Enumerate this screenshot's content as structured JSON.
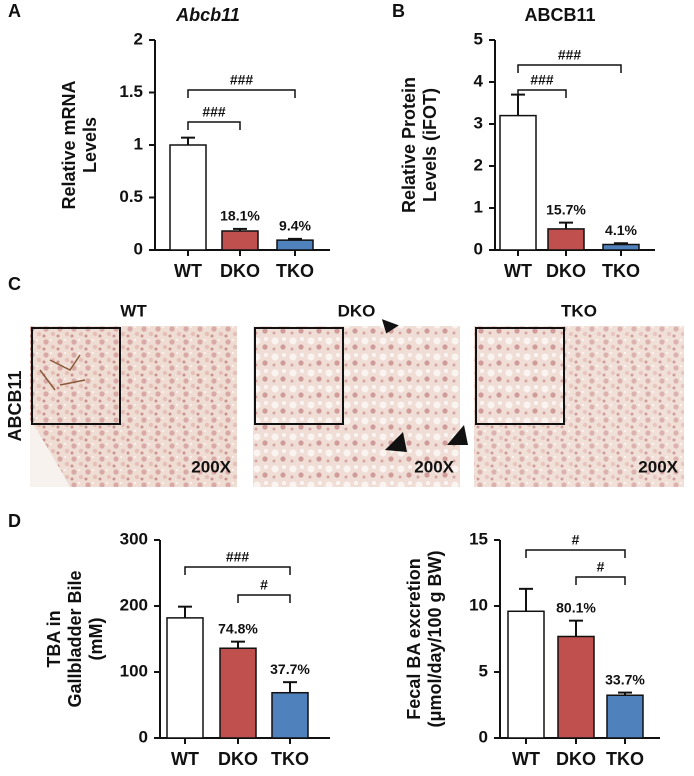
{
  "chart_data": [
    {
      "type": "bar",
      "panel": "A",
      "title": "Abcb11",
      "ylabel": [
        "Relative mRNA",
        "Levels"
      ],
      "categories": [
        "WT",
        "DKO",
        "TKO"
      ],
      "values": [
        1.0,
        0.181,
        0.094
      ],
      "errors": [
        0.07,
        0.02,
        0.012
      ],
      "value_labels": [
        null,
        "18.1%",
        "9.4%"
      ],
      "colors": [
        "#ffffff",
        "#c0504d",
        "#4f81bd"
      ],
      "ylim": [
        0,
        2
      ],
      "yticks": [
        0,
        0.5,
        1,
        1.5,
        2
      ],
      "brackets": [
        {
          "label": "###",
          "between": [
            "WT",
            "DKO"
          ]
        },
        {
          "label": "###",
          "between": [
            "WT",
            "TKO"
          ]
        }
      ]
    },
    {
      "type": "bar",
      "panel": "B",
      "title": "ABCB11",
      "ylabel": [
        "Relative Protein",
        "Levels (iFOT)"
      ],
      "categories": [
        "WT",
        "DKO",
        "TKO"
      ],
      "values": [
        3.2,
        0.502,
        0.131
      ],
      "errors": [
        0.5,
        0.15,
        0.03
      ],
      "value_labels": [
        null,
        "15.7%",
        "4.1%"
      ],
      "colors": [
        "#ffffff",
        "#c0504d",
        "#4f81bd"
      ],
      "ylim": [
        0,
        5
      ],
      "yticks": [
        0,
        1,
        2,
        3,
        4,
        5
      ],
      "brackets": [
        {
          "label": "###",
          "between": [
            "WT",
            "TKO"
          ]
        },
        {
          "label": "###",
          "between": [
            "WT",
            "DKO"
          ]
        }
      ]
    },
    {
      "type": "bar",
      "panel": "D",
      "ylabel": [
        "TBA in",
        "Gallbladder Bile",
        "(mM)"
      ],
      "categories": [
        "WT",
        "DKO",
        "TKO"
      ],
      "values": [
        182,
        136,
        68.6
      ],
      "errors": [
        17,
        10,
        16
      ],
      "value_labels": [
        null,
        "74.8%",
        "37.7%"
      ],
      "colors": [
        "#ffffff",
        "#c0504d",
        "#4f81bd"
      ],
      "ylim": [
        0,
        300
      ],
      "yticks": [
        0,
        100,
        200,
        300
      ],
      "brackets": [
        {
          "label": "###",
          "between": [
            "WT",
            "TKO"
          ]
        },
        {
          "label": "#",
          "between": [
            "DKO",
            "TKO"
          ]
        }
      ]
    },
    {
      "type": "bar",
      "ylabel": [
        "Fecal BA excretion",
        "(μmol/day/100 g BW)"
      ],
      "categories": [
        "WT",
        "DKO",
        "TKO"
      ],
      "values": [
        9.6,
        7.69,
        3.24
      ],
      "errors": [
        1.7,
        1.2,
        0.2
      ],
      "value_labels": [
        null,
        "80.1%",
        "33.7%"
      ],
      "colors": [
        "#ffffff",
        "#c0504d",
        "#4f81bd"
      ],
      "ylim": [
        0,
        15
      ],
      "yticks": [
        0,
        5,
        10,
        15
      ],
      "brackets": [
        {
          "label": "#",
          "between": [
            "WT",
            "TKO"
          ]
        },
        {
          "label": "#",
          "between": [
            "DKO",
            "TKO"
          ]
        }
      ]
    }
  ],
  "panel_c": {
    "panel": "C",
    "row_label": "ABCB11",
    "images": [
      {
        "title": "WT",
        "magnification": "200X"
      },
      {
        "title": "DKO",
        "magnification": "200X"
      },
      {
        "title": "TKO",
        "magnification": "200X"
      }
    ]
  }
}
